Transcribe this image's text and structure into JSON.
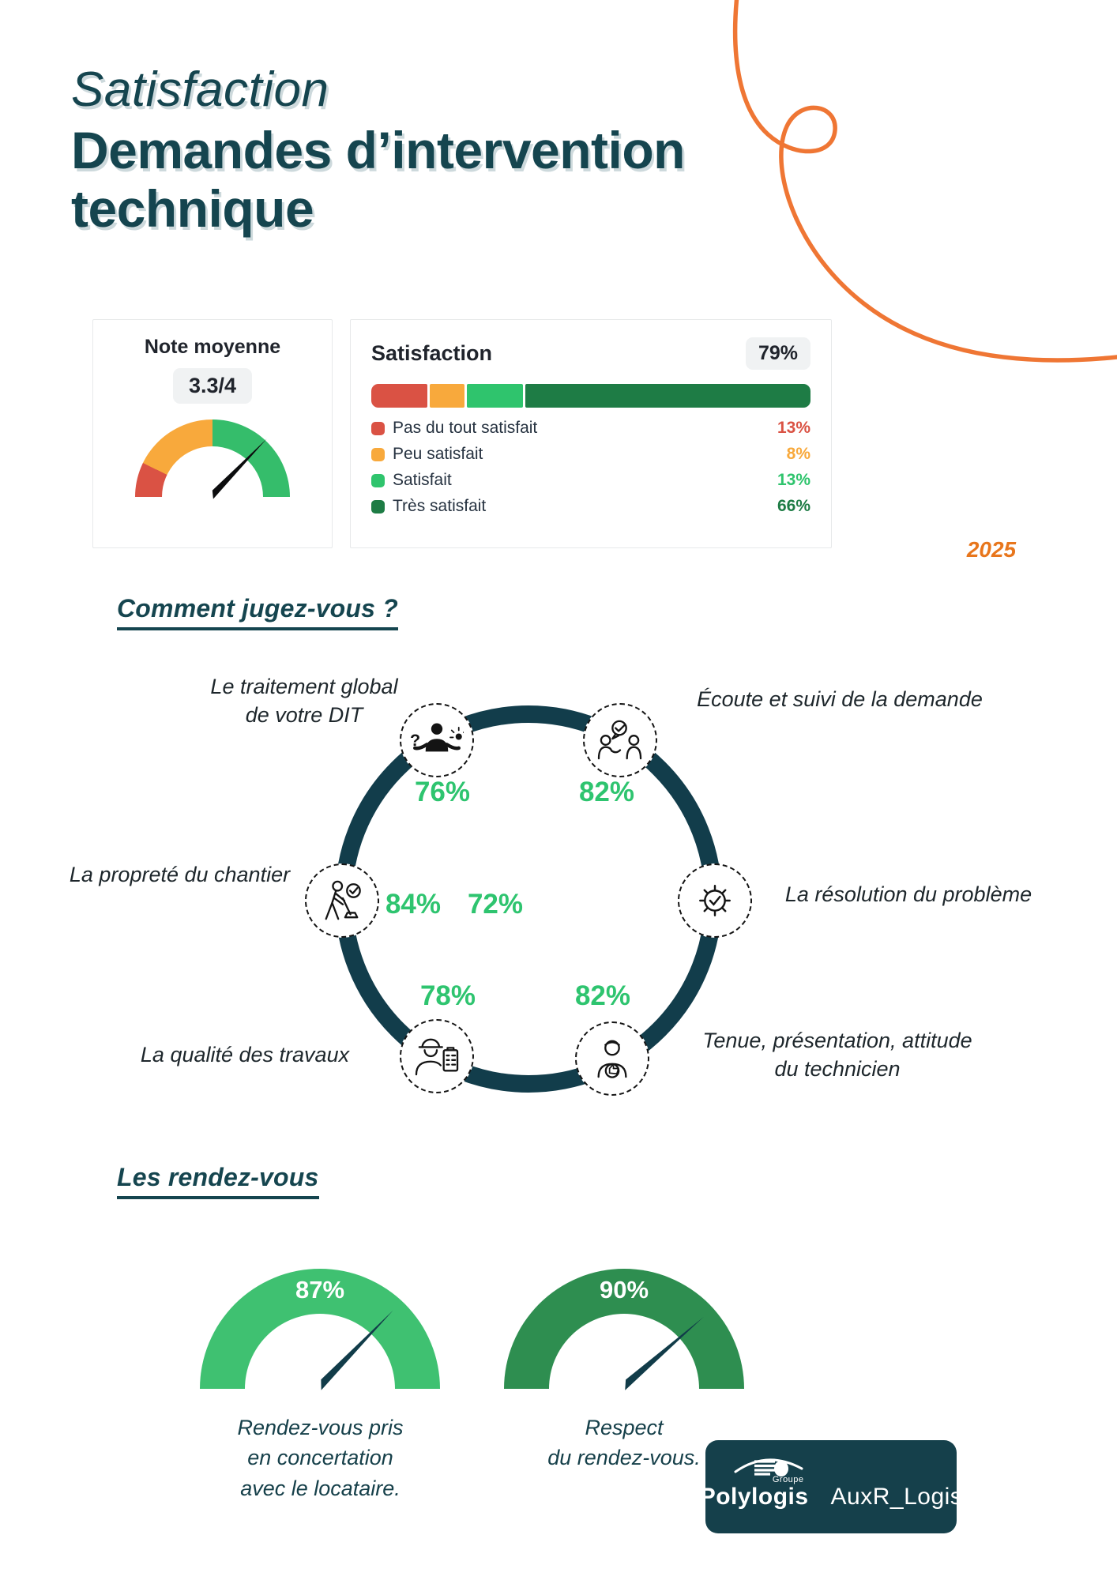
{
  "title": {
    "line1": "Satisfaction",
    "line2": "Demandes d’intervention",
    "line3": "technique"
  },
  "year": "2025",
  "note_card": {
    "title": "Note moyenne",
    "score": "3.3/4"
  },
  "satisfaction_card": {
    "title": "Satisfaction",
    "overall": "79%",
    "bar": [
      {
        "label": "Pas du tout satisfait",
        "value": "13%",
        "color": "#da5244"
      },
      {
        "label": "Peu satisfait",
        "value": "8%",
        "color": "#f8a93c"
      },
      {
        "label": "Satisfait",
        "value": "13%",
        "color": "#2fc46d"
      },
      {
        "label": "Très satisfait",
        "value": "66%",
        "color": "#1e7c45"
      }
    ]
  },
  "judge_section": {
    "heading": "Comment jugez-vous ?",
    "items": [
      {
        "label": "Le traitement global\nde votre DIT",
        "pct": "76%",
        "icon": "thinking-person-icon"
      },
      {
        "label": "Écoute et suivi de la demande",
        "pct": "82%",
        "icon": "people-dialog-check-icon"
      },
      {
        "label": "La propreté du chantier",
        "pct": "84%",
        "icon": "sweeping-check-icon"
      },
      {
        "label": "La résolution du problème",
        "pct": "72%",
        "icon": "gear-check-icon"
      },
      {
        "label": "La qualité des travaux",
        "pct": "78%",
        "icon": "worker-clipboard-icon"
      },
      {
        "label": "Tenue, présentation, attitude\ndu technicien",
        "pct": "82%",
        "icon": "technician-thumbsup-icon"
      }
    ]
  },
  "rdv_section": {
    "heading": "Les rendez-vous",
    "gauges": [
      {
        "pct": "87%",
        "color": "#3fc171",
        "caption": "Rendez-vous pris\nen concertation\navec le locataire."
      },
      {
        "pct": "90%",
        "color": "#2e8e50",
        "caption": "Respect\ndu rendez-vous."
      }
    ]
  },
  "logo": {
    "group": "Groupe",
    "brand": "Polylogis",
    "partner": "AuxR_Logis"
  },
  "colors": {
    "accent_teal": "#15454F",
    "ring": "#123D4B",
    "percent_green": "#2EC46F",
    "year_orange": "#E8761C",
    "swirl_orange": "#EF7634",
    "needle_teal": "#113C49"
  },
  "chart_data": [
    {
      "type": "gauge",
      "title": "Note moyenne",
      "value": 3.3,
      "max": 4,
      "segments": [
        {
          "color": "#da5244"
        },
        {
          "color": "#f8a93c"
        },
        {
          "color": "#35bd6b"
        }
      ]
    },
    {
      "type": "bar",
      "title": "Satisfaction",
      "overall_pct": 79,
      "categories": [
        "Pas du tout satisfait",
        "Peu satisfait",
        "Satisfait",
        "Très satisfait"
      ],
      "values": [
        13,
        8,
        13,
        66
      ],
      "colors": [
        "#da5244",
        "#f8a93c",
        "#2fc46d",
        "#1e7c45"
      ],
      "unit": "%",
      "legend_position": "below"
    },
    {
      "type": "bar",
      "title": "Comment jugez-vous ?",
      "categories": [
        "Le traitement global de votre DIT",
        "Écoute et suivi de la demande",
        "La propreté du chantier",
        "La résolution du problème",
        "La qualité des travaux",
        "Tenue, présentation, attitude du technicien"
      ],
      "values": [
        76,
        82,
        84,
        72,
        78,
        82
      ],
      "unit": "%",
      "layout": "circular-diagram"
    },
    {
      "type": "gauge",
      "title": "Rendez-vous pris en concertation avec le locataire.",
      "value": 87,
      "max": 100
    },
    {
      "type": "gauge",
      "title": "Respect du rendez-vous.",
      "value": 90,
      "max": 100
    }
  ]
}
